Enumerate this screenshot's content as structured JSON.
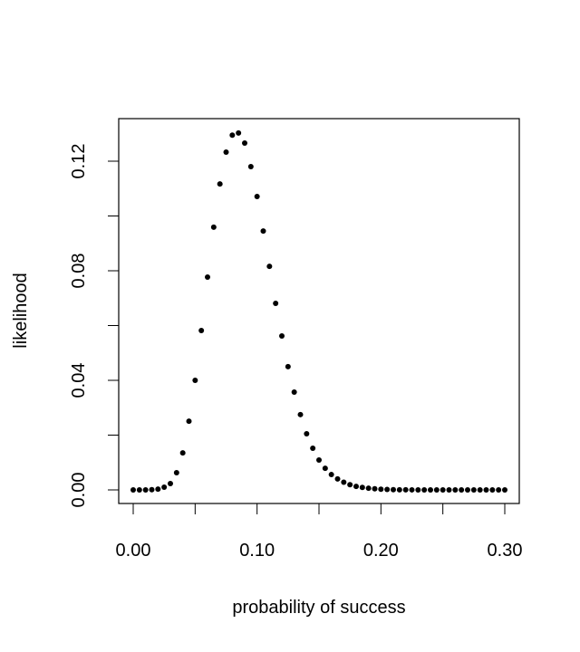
{
  "chart_data": {
    "type": "scatter",
    "title": "",
    "xlabel": "probability of success",
    "ylabel": "likelihood",
    "xlim": [
      0,
      0.3
    ],
    "ylim": [
      0,
      0.13
    ],
    "x_ticks": [
      0,
      0.05,
      0.1,
      0.15,
      0.2,
      0.25,
      0.3
    ],
    "x_tick_labels": [
      {
        "v": 0,
        "t": "0.00"
      },
      {
        "v": 0.1,
        "t": "0.10"
      },
      {
        "v": 0.2,
        "t": "0.20"
      },
      {
        "v": 0.3,
        "t": "0.30"
      }
    ],
    "y_ticks": [
      0,
      0.02,
      0.04,
      0.06,
      0.08,
      0.1,
      0.12
    ],
    "y_tick_labels": [
      {
        "v": 0,
        "t": "0.00"
      },
      {
        "v": 0.04,
        "t": "0.04"
      },
      {
        "v": 0.08,
        "t": "0.08"
      },
      {
        "v": 0.12,
        "t": "0.12"
      }
    ],
    "grid": false,
    "x": [
      0,
      0.005,
      0.01,
      0.015,
      0.02,
      0.025,
      0.03,
      0.035,
      0.04,
      0.045,
      0.05,
      0.055,
      0.06,
      0.065,
      0.07,
      0.075,
      0.08,
      0.085,
      0.09,
      0.095,
      0.1,
      0.105,
      0.11,
      0.115,
      0.12,
      0.125,
      0.13,
      0.135,
      0.14,
      0.145,
      0.15,
      0.155,
      0.16,
      0.165,
      0.17,
      0.175,
      0.18,
      0.185,
      0.19,
      0.195,
      0.2,
      0.205,
      0.21,
      0.215,
      0.22,
      0.225,
      0.23,
      0.235,
      0.24,
      0.245,
      0.25,
      0.255,
      0.26,
      0.265,
      0.27,
      0.275,
      0.28,
      0.285,
      0.29,
      0.295,
      0.3
    ],
    "y": [
      0,
      0,
      0,
      0.0001,
      0.0003,
      0.001,
      0.0023,
      0.0063,
      0.0135,
      0.0251,
      0.04,
      0.0582,
      0.0777,
      0.0959,
      0.1117,
      0.1233,
      0.1295,
      0.1303,
      0.1266,
      0.118,
      0.1071,
      0.0945,
      0.0816,
      0.0681,
      0.0562,
      0.045,
      0.0357,
      0.0275,
      0.0205,
      0.0152,
      0.0109,
      0.0079,
      0.0056,
      0.004,
      0.0028,
      0.0019,
      0.0013,
      0.0009,
      0.0006,
      0.0004,
      0.00025,
      0.00016,
      0.0001,
      6e-05,
      4e-05,
      2e-05,
      1e-05,
      0,
      0,
      0,
      0,
      0,
      0,
      0,
      0,
      0,
      0,
      0,
      0,
      0,
      0
    ]
  }
}
